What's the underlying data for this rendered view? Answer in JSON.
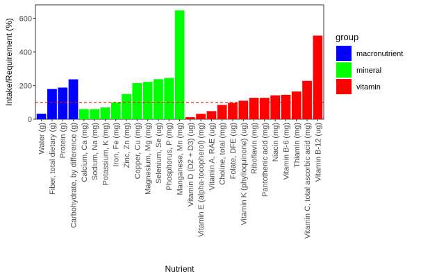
{
  "chart_data": {
    "type": "bar",
    "xlabel": "Nutrient",
    "ylabel": "Intake/Requirement (%)",
    "ylim": [
      0,
      680
    ],
    "yticks": [
      0,
      200,
      400,
      600
    ],
    "reference_line": 100,
    "grid": false,
    "legend_position": "right",
    "legend": {
      "title": "group",
      "entries": [
        {
          "name": "macronutrient",
          "color": "#0000ff"
        },
        {
          "name": "mineral",
          "color": "#00ff00"
        },
        {
          "name": "vitamin",
          "color": "#ff0000"
        }
      ]
    },
    "colors": {
      "macronutrient": "#0000ff",
      "mineral": "#00ff00",
      "vitamin": "#ff0000",
      "reference_line": "#ff0000"
    },
    "categories": [
      "Water (g)",
      "Fiber, total dietary (g)",
      "Protein (g)",
      "Carbohydrate, by difference (g)",
      "Calcium, Ca (mg)",
      "Sodium, Na (mg)",
      "Potassium, K (mg)",
      "Iron, Fe (mg)",
      "Zinc, Zn (mg)",
      "Copper, Cu (mg)",
      "Magnesium, Mg (mg)",
      "Selenium, Se (ug)",
      "Phosphorus, P (mg)",
      "Manganese, Mn (mg)",
      "Vitamin D (D2 + D3) (ug)",
      "Vitamin E (alpha-tocopherol) (mg)",
      "Vitamin A, RAE (ug)",
      "Choline, total (mg)",
      "Folate, DFE (ug)",
      "Vitamin K (phylloquinone) (ug)",
      "Riboflavin (mg)",
      "Pantothenic acid (mg)",
      "Niacin (mg)",
      "Vitamin B-6 (mg)",
      "Thiamin (mg)",
      "Vitamin C, total ascorbic acid (mg)",
      "Vitamin B-12 (ug)"
    ],
    "groups": [
      "macronutrient",
      "macronutrient",
      "macronutrient",
      "macronutrient",
      "mineral",
      "mineral",
      "mineral",
      "mineral",
      "mineral",
      "mineral",
      "mineral",
      "mineral",
      "mineral",
      "mineral",
      "vitamin",
      "vitamin",
      "vitamin",
      "vitamin",
      "vitamin",
      "vitamin",
      "vitamin",
      "vitamin",
      "vitamin",
      "vitamin",
      "vitamin",
      "vitamin",
      "vitamin"
    ],
    "values": [
      33,
      180,
      188,
      237,
      60,
      60,
      70,
      100,
      150,
      215,
      222,
      238,
      245,
      647,
      12,
      32,
      48,
      85,
      97,
      110,
      127,
      127,
      142,
      145,
      165,
      228,
      497
    ]
  }
}
